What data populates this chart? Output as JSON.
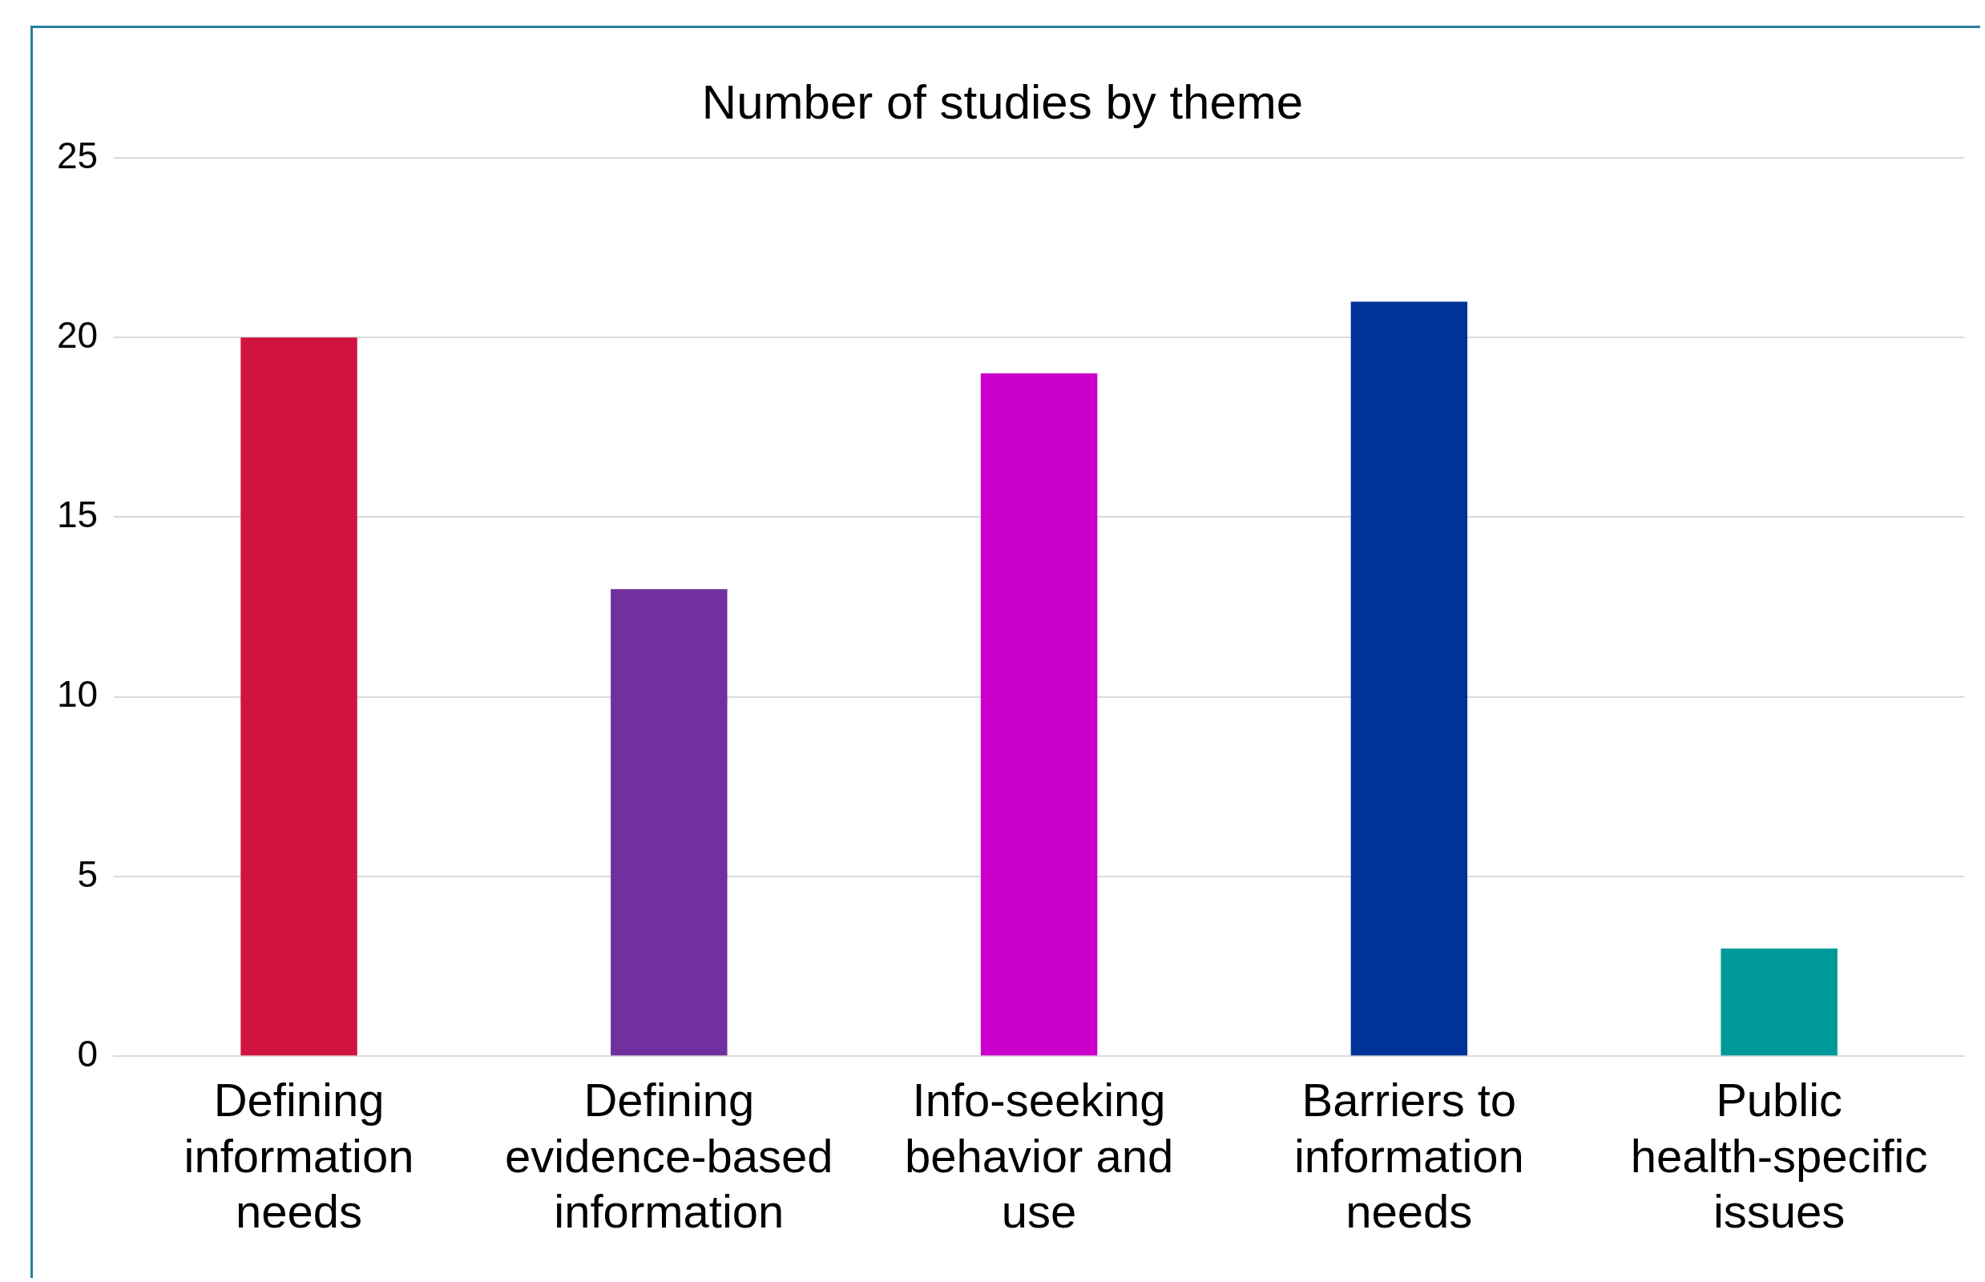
{
  "chart_data": {
    "type": "bar",
    "title": "Number of studies by theme",
    "categories": [
      "Defining information needs",
      "Defining evidence-based information",
      "Info-seeking behavior and use",
      "Barriers to information needs",
      "Public health-specific issues"
    ],
    "values": [
      20,
      13,
      19,
      21,
      3
    ],
    "colors": [
      "#d0143f",
      "#70309f",
      "#cc00cc",
      "#003399",
      "#009999"
    ],
    "ylim": [
      0,
      25
    ],
    "yticks": [
      0,
      5,
      10,
      15,
      20,
      25
    ],
    "grid": "y",
    "legend": false
  }
}
